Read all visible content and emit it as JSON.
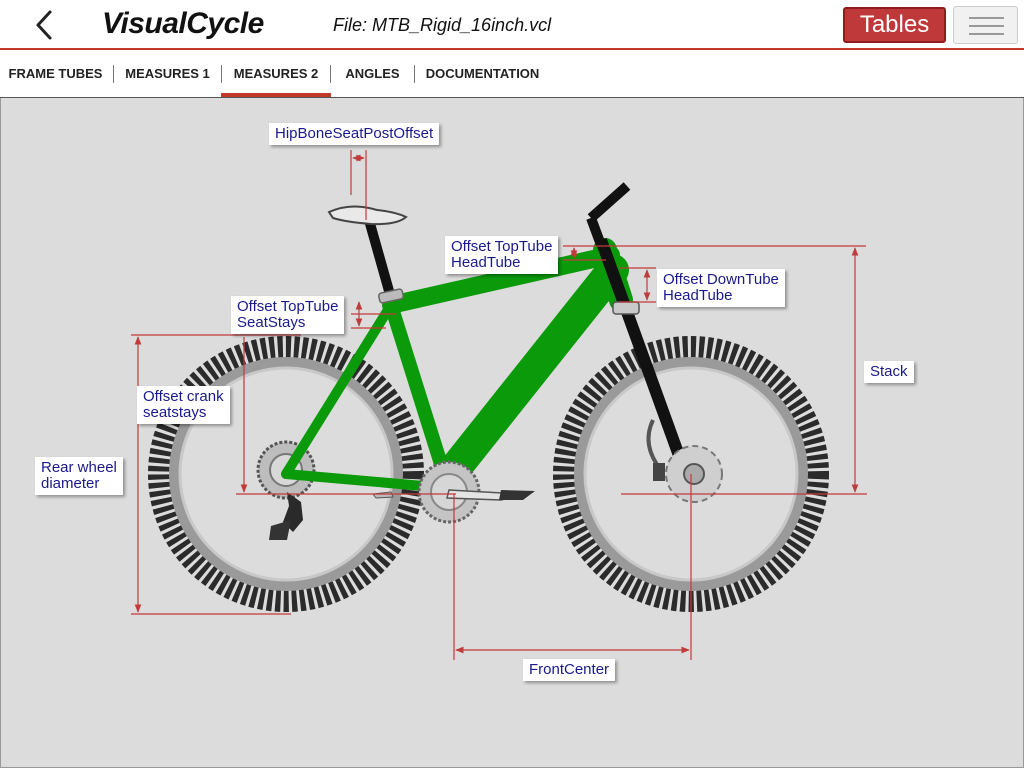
{
  "header": {
    "app_title": "VisualCycle",
    "file_label": "File: MTB_Rigid_16inch.vcl",
    "tables_button": "Tables"
  },
  "tabs": [
    {
      "label": "FRAME TUBES",
      "active": false
    },
    {
      "label": "MEASURES 1",
      "active": false
    },
    {
      "label": "MEASURES 2",
      "active": true
    },
    {
      "label": "ANGLES",
      "active": false
    },
    {
      "label": "DOCUMENTATION",
      "active": false
    }
  ],
  "labels": {
    "hipbone_seatpost_offset": "HipBoneSeatPostOffset",
    "offset_toptube_headtube": "Offset TopTube\nHeadTube",
    "offset_downtube_headtube": "Offset DownTube\nHeadTube",
    "offset_toptube_seatstays": "Offset TopTube\nSeatStays",
    "stack": "Stack",
    "offset_crank_seatstays": "Offset crank\nseatstays",
    "rear_wheel_diameter": "Rear wheel\ndiameter",
    "front_center": "FrontCenter"
  },
  "colors": {
    "accent": "#c0392b",
    "frame": "#0a9a0a",
    "dimension_lines": "#c23a3a",
    "label_text": "#1a1a8c"
  }
}
